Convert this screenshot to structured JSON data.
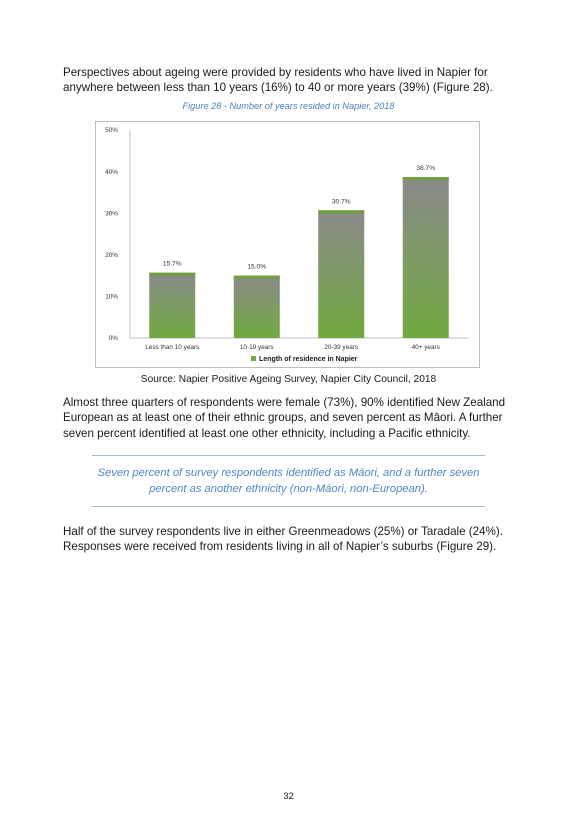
{
  "paragraphs": {
    "p1": "Perspectives about ageing were provided by residents who have lived in Napier for anywhere between less than 10 years (16%) to 40 or more years (39%) (Figure 28).",
    "p2": "Almost three quarters of respondents were female (73%), 90% identified New Zealand European as at least one of their ethnic groups, and seven percent as Māori. A further seven percent identified at least one other ethnicity, including a Pacific ethnicity.",
    "p3": "Half of the survey respondents live in either Greenmeadows (25%) or Taradale (24%). Responses were received from residents living in all of Napier’s suburbs (Figure 29)."
  },
  "figure": {
    "caption": "Figure 28 - Number of years resided in Napier, 2018",
    "source": "Source: Napier Positive Ageing Survey, Napier City Council, 2018"
  },
  "pullquote": "Seven percent of survey respondents identified as Māori, and a further seven percent as another ethnicity (non-Māori, non-European).",
  "page_number": "32",
  "colors": {
    "bar_top": "#8a8a8a",
    "bar_bottom": "#70a93f",
    "bar_cap": "#6f9e3c",
    "caption": "#4f7fbf"
  },
  "chart_data": {
    "type": "bar",
    "categories": [
      "Less than 10 years",
      "10-19 years",
      "20-39 years",
      "40+ years"
    ],
    "series": [
      {
        "name": "Length of residence in Napier",
        "values": [
          15.7,
          15.0,
          30.7,
          38.7
        ]
      }
    ],
    "data_labels": [
      "15.7%",
      "15.0%",
      "30.7%",
      "38.7%"
    ],
    "yticks": [
      "0%",
      "10%",
      "20%",
      "30%",
      "40%",
      "50%"
    ],
    "ylim": [
      0,
      50
    ],
    "grid": false,
    "legend_position": "bottom"
  }
}
